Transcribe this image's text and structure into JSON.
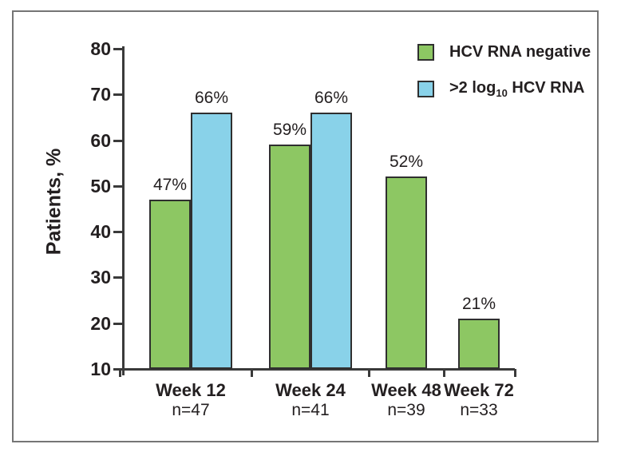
{
  "chart_data": {
    "type": "bar",
    "title": "",
    "ylabel": "Patients, %",
    "xlabel": "",
    "ylim": [
      10,
      80
    ],
    "yticks": [
      80,
      70,
      60,
      50,
      40,
      30,
      20,
      10
    ],
    "grid": false,
    "legend_position": "top-right-inside",
    "categories": [
      "Week 12",
      "Week 24",
      "Week 48",
      "Week 72"
    ],
    "category_sublabels": [
      "n=47",
      "n=41",
      "n=39",
      "n=33"
    ],
    "series": [
      {
        "name": "HCV RNA negative",
        "name_parts": [
          {
            "t": "HCV RNA negative",
            "sub": false
          }
        ],
        "color": "#8dc763",
        "values": [
          47,
          59,
          52,
          21
        ],
        "labels": [
          "47%",
          "59%",
          "52%",
          "21%"
        ]
      },
      {
        "name": ">2 log10 HCV RNA",
        "name_parts": [
          {
            "t": ">2 log",
            "sub": false
          },
          {
            "t": "10",
            "sub": true
          },
          {
            "t": " HCV RNA",
            "sub": false
          }
        ],
        "color": "#89d2e9",
        "values": [
          66,
          66,
          null,
          null
        ],
        "labels": [
          "66%",
          "66%",
          null,
          null
        ]
      }
    ]
  },
  "colors": {
    "bar_border": "#2f2f2f",
    "axis": "#3a3a3a",
    "text": "#231f20",
    "figure_border": "#757575",
    "green": "#8dc763",
    "blue": "#89d2e9"
  }
}
